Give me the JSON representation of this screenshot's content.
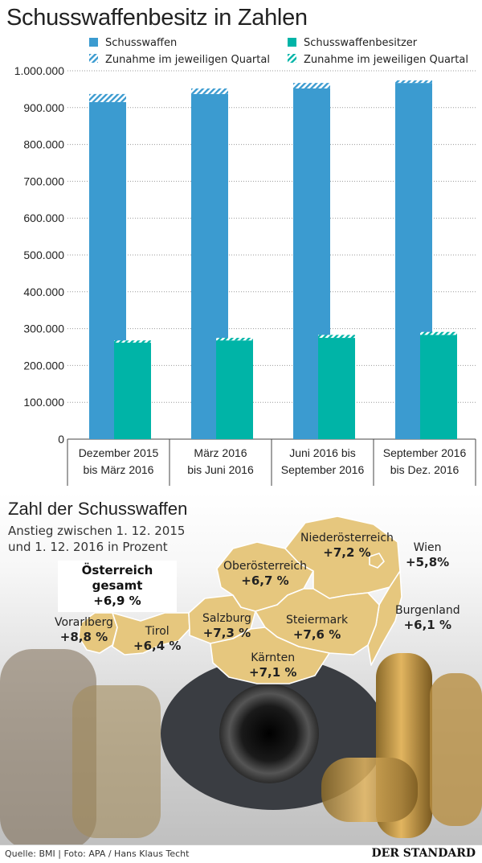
{
  "title": "Schusswaffenbesitz in Zahlen",
  "legend": {
    "series1": "Schusswaffen",
    "series1_increase": "Zunahme im jeweiligen Quartal",
    "series2": "Schusswaffenbesitzer",
    "series2_increase": "Zunahme im jeweiligen Quartal"
  },
  "colors": {
    "schusswaffen": "#3b9bd0",
    "besitzer": "#00b4a7",
    "map_fill": "#e6c77e"
  },
  "chart_data": {
    "type": "bar",
    "categories": [
      [
        "Dezember 2015",
        "bis März 2016"
      ],
      [
        "März 2016",
        "bis Juni 2016"
      ],
      [
        "Juni 2016 bis",
        "September 2016"
      ],
      [
        "September 2016",
        "bis Dez. 2016"
      ]
    ],
    "series": [
      {
        "name": "Schusswaffen",
        "values": [
          937000,
          952000,
          967000,
          974000
        ],
        "increase": [
          22000,
          15000,
          15000,
          7000
        ]
      },
      {
        "name": "Schusswaffenbesitzer",
        "values": [
          268000,
          275000,
          283000,
          291000
        ],
        "increase": [
          6000,
          7000,
          8000,
          8000
        ]
      }
    ],
    "ylim": [
      0,
      1000000
    ],
    "yticks": [
      "0",
      "100.000",
      "200.000",
      "300.000",
      "400.000",
      "500.000",
      "600.000",
      "700.000",
      "800.000",
      "900.000",
      "1.000.000"
    ],
    "grid": true
  },
  "map": {
    "title": "Zahl der Schusswaffen",
    "subtitle_line1": "Anstieg zwischen 1. 12. 2015",
    "subtitle_line2": "und 1. 12. 2016 in Prozent",
    "total_label": "Österreich gesamt",
    "total_value": "+6,9 %",
    "regions": [
      {
        "name": "Vorarlberg",
        "value": "+8,8 %"
      },
      {
        "name": "Tirol",
        "value": "+6,4 %"
      },
      {
        "name": "Salzburg",
        "value": "+7,3 %"
      },
      {
        "name": "Kärnten",
        "value": "+7,1 %"
      },
      {
        "name": "Steiermark",
        "value": "+7,6 %"
      },
      {
        "name": "Oberösterreich",
        "value": "+6,7 %"
      },
      {
        "name": "Niederösterreich",
        "value": "+7,2 %"
      },
      {
        "name": "Wien",
        "value": "+5,8%"
      },
      {
        "name": "Burgenland",
        "value": "+6,1 %"
      }
    ]
  },
  "footer": {
    "source": "Quelle: BMI   |   Foto: APA / Hans Klaus Techt",
    "brand": "DER STANDARD"
  }
}
